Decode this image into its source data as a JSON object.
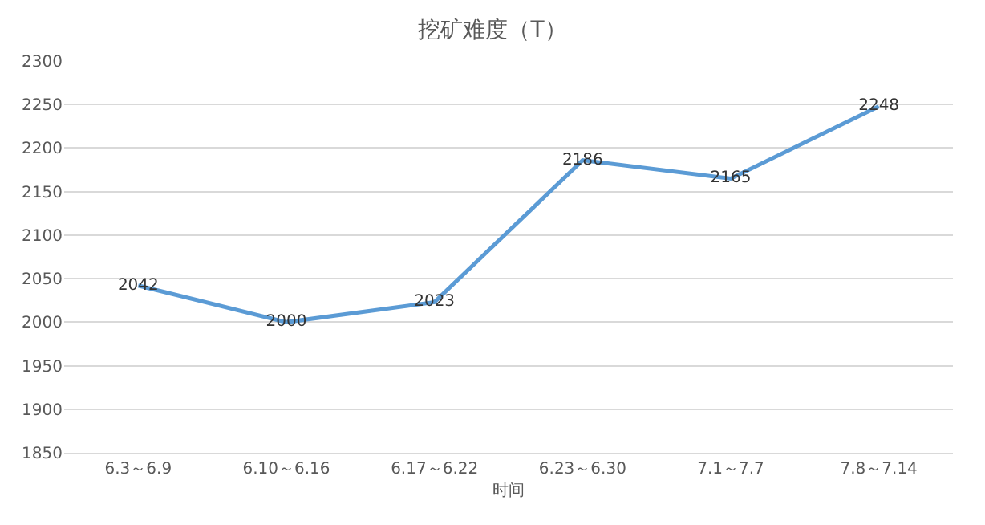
{
  "chart_data": {
    "type": "line",
    "title": "挖矿难度（T）",
    "xlabel": "时间",
    "categories": [
      "6.3～6.9",
      "6.10～6.16",
      "6.17～6.22",
      "6.23～6.30",
      "7.1～7.7",
      "7.8～7.14"
    ],
    "series": [
      {
        "color": "#5b9bd5",
        "values": [
          2042,
          2000,
          2023,
          2186,
          2165,
          2248
        ]
      }
    ],
    "ylim": [
      1850,
      2300
    ],
    "yticks": [
      1850,
      1900,
      1950,
      2000,
      2050,
      2100,
      2150,
      2200,
      2250,
      2300
    ],
    "grid": "y",
    "data_labels": true,
    "marker": "none",
    "line_style": "solid",
    "legend": false
  }
}
